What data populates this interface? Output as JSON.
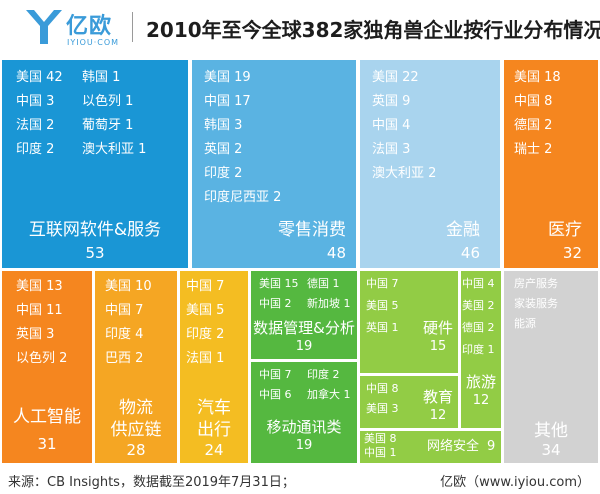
{
  "header": {
    "logo_cn": "亿欧",
    "logo_en": "IYIOU·COM",
    "title": "2010年至今全球382家独角兽企业按行业分布情况"
  },
  "footer": {
    "source": "来源：CB Insights，数据截至2019年7月31日；",
    "brand": "亿欧（www.iyiou.com）"
  },
  "colors": {
    "internet": "#1a96d5",
    "retail": "#5ab3e2",
    "finance": "#a9d4ee",
    "medical": "#f5861f",
    "orange_light": "#f5a623",
    "yellow": "#f4bd22",
    "green": "#55b840",
    "green_light": "#92cc45",
    "gray": "#d2d2d2"
  },
  "chart_data": {
    "type": "treemap",
    "title": "2010年至今全球382家独角兽企业按行业分布情况",
    "total": 382,
    "sectors": [
      {
        "name": "互联网软件&服务",
        "count": 53,
        "countries": [
          [
            "美国",
            42
          ],
          [
            "中国",
            3
          ],
          [
            "法国",
            2
          ],
          [
            "印度",
            2
          ],
          [
            "韩国",
            1
          ],
          [
            "以色列",
            1
          ],
          [
            "葡萄牙",
            1
          ],
          [
            "澳大利亚",
            1
          ]
        ]
      },
      {
        "name": "零售消费",
        "count": 48,
        "countries": [
          [
            "美国",
            19
          ],
          [
            "中国",
            17
          ],
          [
            "韩国",
            3
          ],
          [
            "英国",
            2
          ],
          [
            "印度",
            2
          ],
          [
            "印度尼西亚",
            2
          ]
        ]
      },
      {
        "name": "金融",
        "count": 46,
        "countries": [
          [
            "美国",
            22
          ],
          [
            "英国",
            9
          ],
          [
            "中国",
            4
          ],
          [
            "法国",
            3
          ],
          [
            "澳大利亚",
            2
          ]
        ]
      },
      {
        "name": "医疗",
        "count": 32,
        "countries": [
          [
            "美国",
            18
          ],
          [
            "中国",
            8
          ],
          [
            "德国",
            2
          ],
          [
            "瑞士",
            2
          ]
        ]
      },
      {
        "name": "人工智能",
        "count": 31,
        "countries": [
          [
            "美国",
            13
          ],
          [
            "中国",
            11
          ],
          [
            "英国",
            3
          ],
          [
            "以色列",
            2
          ]
        ]
      },
      {
        "name": "物流供应链",
        "count": 28,
        "countries": [
          [
            "美国",
            10
          ],
          [
            "中国",
            7
          ],
          [
            "印度",
            4
          ],
          [
            "巴西",
            2
          ]
        ]
      },
      {
        "name": "汽车出行",
        "count": 24,
        "countries": [
          [
            "中国",
            7
          ],
          [
            "美国",
            5
          ],
          [
            "印度",
            2
          ],
          [
            "法国",
            1
          ]
        ]
      },
      {
        "name": "数据管理&分析",
        "count": 19,
        "countries": [
          [
            "美国",
            15
          ],
          [
            "德国",
            1
          ],
          [
            "中国",
            2
          ],
          [
            "新加坡",
            1
          ]
        ]
      },
      {
        "name": "移动通讯类",
        "count": 19,
        "countries": [
          [
            "中国",
            7
          ],
          [
            "印度",
            2
          ],
          [
            "中国",
            6
          ],
          [
            "加拿大",
            1
          ]
        ]
      },
      {
        "name": "硬件",
        "count": 15,
        "countries": [
          [
            "中国",
            7
          ],
          [
            "美国",
            5
          ],
          [
            "英国",
            1
          ]
        ]
      },
      {
        "name": "教育",
        "count": 12,
        "countries": [
          [
            "中国",
            8
          ],
          [
            "美国",
            3
          ]
        ]
      },
      {
        "name": "旅游",
        "count": 12,
        "countries": [
          [
            "中国",
            4
          ],
          [
            "美国",
            2
          ],
          [
            "德国",
            2
          ],
          [
            "印度",
            1
          ]
        ]
      },
      {
        "name": "网络安全",
        "count": 9,
        "countries": [
          [
            "美国",
            8
          ],
          [
            "中国",
            1
          ]
        ]
      },
      {
        "name": "其他",
        "count": 34,
        "countries": [
          [
            "房产服务",
            null
          ],
          [
            "家装服务",
            null
          ],
          [
            "能源",
            null
          ]
        ]
      }
    ]
  }
}
